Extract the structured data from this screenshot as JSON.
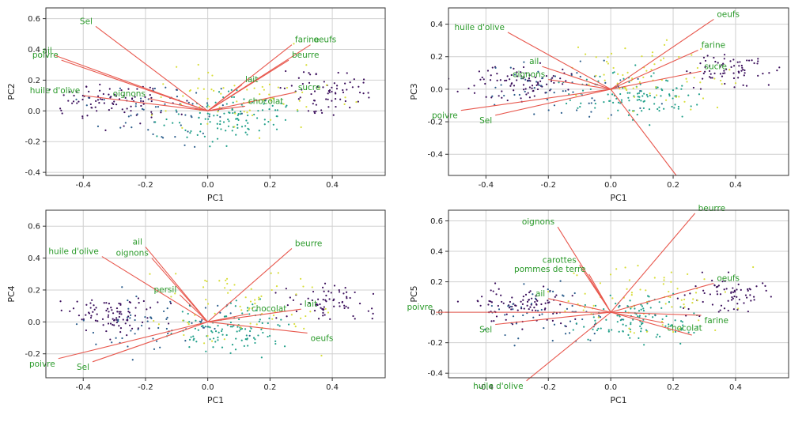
{
  "chart_data": [
    {
      "type": "scatter",
      "xlabel": "PC1",
      "ylabel": "PC2",
      "xlim": [
        -0.52,
        0.57
      ],
      "ylim": [
        -0.42,
        0.67
      ],
      "xticks": [
        "-0.4",
        "-0.2",
        "0.0",
        "0.2",
        "0.4"
      ],
      "yticks": [
        "-0.4",
        "-0.2",
        "0.0",
        "0.2",
        "0.4",
        "0.6"
      ],
      "grid": true,
      "vectors": [
        {
          "label": "Sel",
          "x": -0.36,
          "y": 0.55
        },
        {
          "label": "poivre",
          "x": -0.47,
          "y": 0.33
        },
        {
          "label": "ail",
          "x": -0.49,
          "y": 0.36
        },
        {
          "label": "huile d'olive",
          "x": -0.4,
          "y": 0.1
        },
        {
          "label": "oignons",
          "x": -0.19,
          "y": 0.08
        },
        {
          "label": "farine",
          "x": 0.27,
          "y": 0.43
        },
        {
          "label": "oeufs",
          "x": 0.33,
          "y": 0.43
        },
        {
          "label": "beurre",
          "x": 0.26,
          "y": 0.33
        },
        {
          "label": "lait",
          "x": 0.11,
          "y": 0.17
        },
        {
          "label": "sucre",
          "x": 0.28,
          "y": 0.12
        },
        {
          "label": "chocolat",
          "x": 0.12,
          "y": 0.03
        }
      ]
    },
    {
      "type": "scatter",
      "xlabel": "PC1",
      "ylabel": "PC3",
      "xlim": [
        -0.52,
        0.57
      ],
      "ylim": [
        -0.53,
        0.5
      ],
      "xticks": [
        "-0.4",
        "-0.2",
        "0.0",
        "0.2",
        "0.4"
      ],
      "yticks": [
        "-0.4",
        "-0.2",
        "0.0",
        "0.2",
        "0.4"
      ],
      "grid": true,
      "vectors": [
        {
          "label": "huile d'olive",
          "x": -0.33,
          "y": 0.35
        },
        {
          "label": "ail",
          "x": -0.22,
          "y": 0.14
        },
        {
          "label": "oignons",
          "x": -0.2,
          "y": 0.06
        },
        {
          "label": "poivre",
          "x": -0.48,
          "y": -0.13
        },
        {
          "label": "Sel",
          "x": -0.37,
          "y": -0.16
        },
        {
          "label": "oeufs",
          "x": 0.33,
          "y": 0.43
        },
        {
          "label": "farine",
          "x": 0.28,
          "y": 0.24
        },
        {
          "label": "sucre",
          "x": 0.29,
          "y": 0.11
        },
        {
          "label": "",
          "x": 0.21,
          "y": -0.53
        }
      ]
    },
    {
      "type": "scatter",
      "xlabel": "PC1",
      "ylabel": "PC4",
      "xlim": [
        -0.52,
        0.57
      ],
      "ylim": [
        -0.35,
        0.7
      ],
      "xticks": [
        "-0.4",
        "-0.2",
        "0.0",
        "0.2",
        "0.4"
      ],
      "yticks": [
        "-0.2",
        "0.0",
        "0.2",
        "0.4",
        "0.6"
      ],
      "grid": true,
      "vectors": [
        {
          "label": "huile d'olive",
          "x": -0.34,
          "y": 0.41
        },
        {
          "label": "ail",
          "x": -0.2,
          "y": 0.47
        },
        {
          "label": "oignons",
          "x": -0.18,
          "y": 0.4
        },
        {
          "label": "persil",
          "x": -0.09,
          "y": 0.17
        },
        {
          "label": "beurre",
          "x": 0.27,
          "y": 0.46
        },
        {
          "label": "chocolat",
          "x": 0.13,
          "y": 0.05
        },
        {
          "label": "lait",
          "x": 0.3,
          "y": 0.08
        },
        {
          "label": "oeufs",
          "x": 0.32,
          "y": -0.07
        },
        {
          "label": "poivre",
          "x": -0.48,
          "y": -0.23
        },
        {
          "label": "Sel",
          "x": -0.37,
          "y": -0.25
        }
      ]
    },
    {
      "type": "scatter",
      "xlabel": "PC1",
      "ylabel": "PC5",
      "xlim": [
        -0.52,
        0.57
      ],
      "ylim": [
        -0.43,
        0.67
      ],
      "xticks": [
        "-0.4",
        "-0.2",
        "0.0",
        "0.2",
        "0.4"
      ],
      "yticks": [
        "-0.4",
        "-0.2",
        "0.0",
        "0.2",
        "0.4",
        "0.6"
      ],
      "grid": true,
      "vectors": [
        {
          "label": "oignons",
          "x": -0.17,
          "y": 0.56
        },
        {
          "label": "carottes",
          "x": -0.1,
          "y": 0.31
        },
        {
          "label": "pommes de terre",
          "x": -0.07,
          "y": 0.25
        },
        {
          "label": "ail",
          "x": -0.2,
          "y": 0.09
        },
        {
          "label": "poivre",
          "x": -0.56,
          "y": 0.0
        },
        {
          "label": "Sel",
          "x": -0.37,
          "y": -0.08
        },
        {
          "label": "huile d'olive",
          "x": -0.27,
          "y": -0.45
        },
        {
          "label": "beurre",
          "x": 0.27,
          "y": 0.65
        },
        {
          "label": "oeufs",
          "x": 0.33,
          "y": 0.19
        },
        {
          "label": "farine",
          "x": 0.29,
          "y": -0.02
        },
        {
          "label": "chocolat",
          "x": 0.17,
          "y": -0.07
        },
        {
          "label": "",
          "x": 0.26,
          "y": -0.15
        }
      ]
    }
  ],
  "cluster_colors": [
    "#3b0f5c",
    "#2b5d8c",
    "#21a08a",
    "#d8de3a"
  ]
}
